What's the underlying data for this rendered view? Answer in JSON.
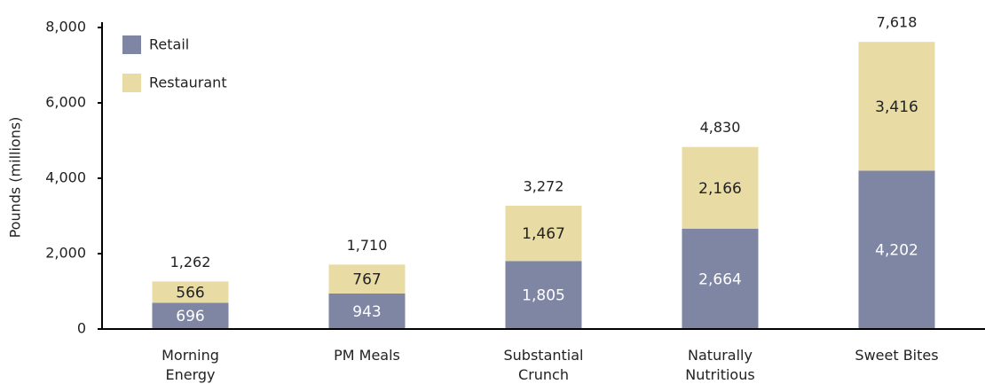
{
  "chart_data": {
    "type": "stacked_bar",
    "y_label": "Pounds (millions)",
    "categories": [
      "Morning\nEnergy",
      "PM Meals",
      "Substantial\nCrunch",
      "Naturally\nNutritious",
      "Sweet Bites"
    ],
    "series": [
      {
        "name": "Retail",
        "color": "#7f86a3",
        "values": [
          696,
          943,
          1805,
          2664,
          4202
        ],
        "value_labels": [
          "696",
          "943",
          "1,805",
          "2,664",
          "4,202"
        ]
      },
      {
        "name": "Restaurant",
        "color": "#e8dca4",
        "values": [
          566,
          767,
          1467,
          2166,
          3416
        ],
        "value_labels": [
          "566",
          "767",
          "1,467",
          "2,166",
          "3,416"
        ]
      }
    ],
    "totals": [
      1262,
      1710,
      3272,
      4830,
      7618
    ],
    "total_labels": [
      "1,262",
      "1,710",
      "3,272",
      "4,830",
      "7,618"
    ],
    "ylim": [
      0,
      8000
    ],
    "yticks": [
      0,
      {
        "value": 2000,
        "label": "2,000"
      },
      {
        "value": 4000,
        "label": "4,000"
      },
      {
        "value": 6000,
        "label": "6,000"
      },
      {
        "value": 8000,
        "label": "8,000"
      }
    ],
    "grid": false,
    "legend": "top-left"
  }
}
